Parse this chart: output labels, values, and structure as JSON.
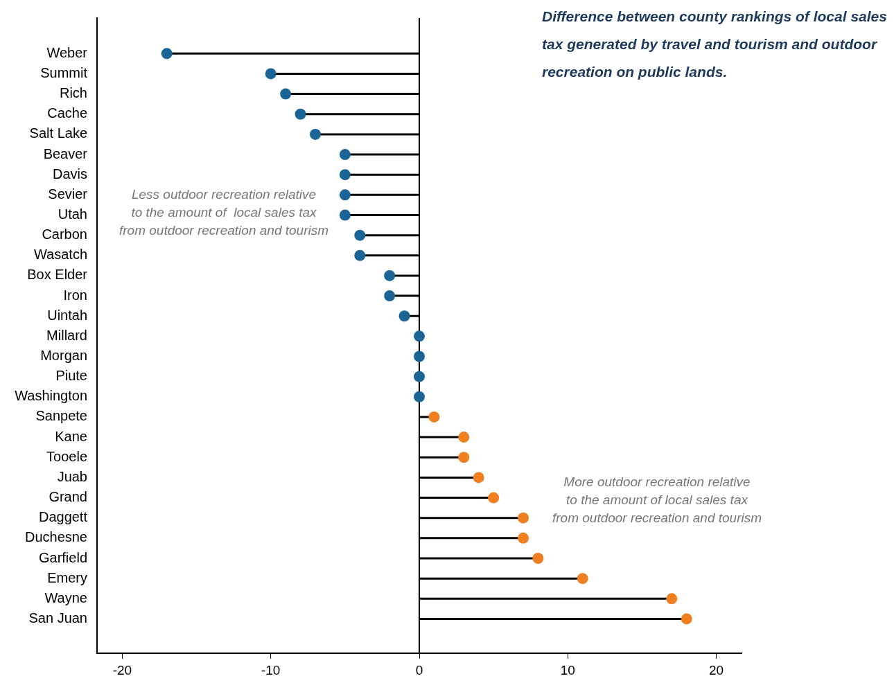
{
  "chart_data": {
    "type": "lollipop",
    "orientation": "horizontal",
    "title": "Difference between county rankings of local sales tax generated by travel and tourism and outdoor recreation on public lands.",
    "categories": [
      "Weber",
      "Summit",
      "Rich",
      "Cache",
      "Salt Lake",
      "Beaver",
      "Davis",
      "Sevier",
      "Utah",
      "Carbon",
      "Wasatch",
      "Box Elder",
      "Iron",
      "Uintah",
      "Millard",
      "Morgan",
      "Piute",
      "Washington",
      "Sanpete",
      "Kane",
      "Tooele",
      "Juab",
      "Grand",
      "Daggett",
      "Duchesne",
      "Garfield",
      "Emery",
      "Wayne",
      "San Juan"
    ],
    "values": [
      -17,
      -10,
      -9,
      -8,
      -7,
      -5,
      -5,
      -5,
      -5,
      -4,
      -4,
      -2,
      -2,
      -1,
      0,
      0,
      0,
      0,
      1,
      3,
      3,
      4,
      5,
      7,
      7,
      8,
      11,
      17,
      18
    ],
    "colors": [
      "#1a6496",
      "#1a6496",
      "#1a6496",
      "#1a6496",
      "#1a6496",
      "#1a6496",
      "#1a6496",
      "#1a6496",
      "#1a6496",
      "#1a6496",
      "#1a6496",
      "#1a6496",
      "#1a6496",
      "#1a6496",
      "#1a6496",
      "#1a6496",
      "#1a6496",
      "#1a6496",
      "#f07f22",
      "#f07f22",
      "#f07f22",
      "#f07f22",
      "#f07f22",
      "#f07f22",
      "#f07f22",
      "#f07f22",
      "#f07f22",
      "#f07f22",
      "#f07f22"
    ],
    "xlim": [
      -21.7,
      21.7
    ],
    "xticks": [
      -20,
      -10,
      0,
      10,
      20
    ],
    "ref_lines": [
      {
        "axis": "x",
        "value": 0,
        "color": "#000000"
      }
    ],
    "marker": "circle",
    "grid": false,
    "legend": false,
    "annotations": [
      "Less outdoor recreation relative\nto the amount of  local sales tax\nfrom outdoor recreation and tourism",
      "More outdoor recreation relative\nto the amount of local sales tax\nfrom outdoor recreation and tourism"
    ]
  }
}
